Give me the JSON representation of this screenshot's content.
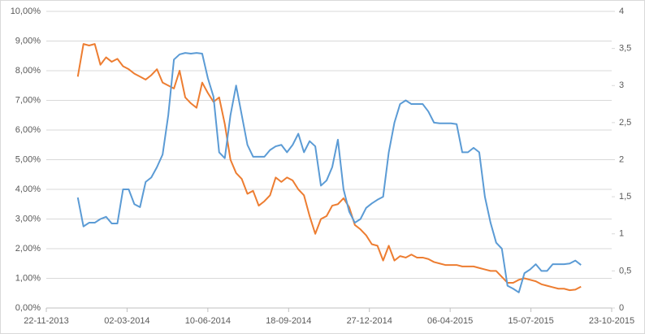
{
  "chart_data": {
    "type": "line",
    "x": [
      "31-12-2013",
      "07-01-2014",
      "14-01-2014",
      "21-01-2014",
      "28-01-2014",
      "04-02-2014",
      "11-02-2014",
      "18-02-2014",
      "25-02-2014",
      "04-03-2014",
      "11-03-2014",
      "18-03-2014",
      "25-03-2014",
      "01-04-2014",
      "08-04-2014",
      "15-04-2014",
      "22-04-2014",
      "29-04-2014",
      "06-05-2014",
      "13-05-2014",
      "20-05-2014",
      "27-05-2014",
      "03-06-2014",
      "10-06-2014",
      "17-06-2014",
      "24-06-2014",
      "01-07-2014",
      "08-07-2014",
      "15-07-2014",
      "22-07-2014",
      "29-07-2014",
      "05-08-2014",
      "12-08-2014",
      "19-08-2014",
      "26-08-2014",
      "02-09-2014",
      "09-09-2014",
      "16-09-2014",
      "23-09-2014",
      "30-09-2014",
      "07-10-2014",
      "14-10-2014",
      "21-10-2014",
      "28-10-2014",
      "04-11-2014",
      "11-11-2014",
      "18-11-2014",
      "25-11-2014",
      "02-12-2014",
      "09-12-2014",
      "16-12-2014",
      "23-12-2014",
      "30-12-2014",
      "06-01-2015",
      "13-01-2015",
      "20-01-2015",
      "27-01-2015",
      "03-02-2015",
      "10-02-2015",
      "17-02-2015",
      "24-02-2015",
      "03-03-2015",
      "10-03-2015",
      "17-03-2015",
      "24-03-2015",
      "31-03-2015",
      "07-04-2015",
      "14-04-2015",
      "21-04-2015",
      "28-04-2015",
      "05-05-2015",
      "12-05-2015",
      "19-05-2015",
      "26-05-2015",
      "02-06-2015",
      "09-06-2015",
      "16-06-2015",
      "23-06-2015",
      "30-06-2015",
      "07-07-2015",
      "14-07-2015",
      "21-07-2015",
      "28-07-2015",
      "04-08-2015",
      "11-08-2015",
      "18-08-2015",
      "25-08-2015",
      "01-09-2015",
      "08-09-2015",
      "15-09-2015"
    ],
    "series": [
      {
        "color": "#ed7d31",
        "values": [
          7.8,
          8.9,
          8.85,
          8.9,
          8.2,
          8.45,
          8.3,
          8.4,
          8.15,
          8.05,
          7.9,
          7.8,
          7.7,
          7.85,
          8.05,
          7.6,
          7.5,
          7.4,
          8.0,
          7.1,
          6.9,
          6.75,
          7.6,
          7.25,
          6.95,
          7.1,
          6.2,
          5.0,
          4.55,
          4.35,
          3.85,
          3.95,
          3.45,
          3.6,
          3.8,
          4.4,
          4.25,
          4.4,
          4.3,
          4.0,
          3.8,
          3.1,
          2.5,
          3.0,
          3.1,
          3.45,
          3.5,
          3.7,
          3.4,
          2.8,
          2.65,
          2.45,
          2.15,
          2.1,
          1.6,
          2.1,
          1.6,
          1.75,
          1.7,
          1.8,
          1.7,
          1.7,
          1.65,
          1.55,
          1.5,
          1.45,
          1.45,
          1.45,
          1.4,
          1.4,
          1.4,
          1.35,
          1.3,
          1.25,
          1.25,
          1.05,
          0.85,
          0.85,
          0.95,
          1.0,
          0.95,
          0.9,
          0.8,
          0.75,
          0.7,
          0.65,
          0.65,
          0.6,
          0.62,
          0.72
        ]
      },
      {
        "color": "#5b9bd5",
        "axis": "y2",
        "values": [
          1.49,
          1.1,
          1.15,
          1.15,
          1.2,
          1.23,
          1.14,
          1.14,
          1.6,
          1.6,
          1.4,
          1.36,
          1.7,
          1.76,
          1.9,
          2.07,
          2.6,
          3.35,
          3.42,
          3.44,
          3.43,
          3.44,
          3.43,
          3.1,
          2.85,
          2.1,
          2.02,
          2.6,
          3.0,
          2.6,
          2.2,
          2.04,
          2.04,
          2.04,
          2.13,
          2.18,
          2.2,
          2.1,
          2.2,
          2.35,
          2.1,
          2.25,
          2.18,
          1.65,
          1.72,
          1.9,
          2.27,
          1.6,
          1.3,
          1.15,
          1.2,
          1.35,
          1.41,
          1.46,
          1.5,
          2.1,
          2.5,
          2.75,
          2.8,
          2.75,
          2.75,
          2.75,
          2.65,
          2.5,
          2.49,
          2.49,
          2.49,
          2.48,
          2.1,
          2.1,
          2.16,
          2.1,
          1.5,
          1.15,
          0.88,
          0.8,
          0.3,
          0.26,
          0.21,
          0.47,
          0.52,
          0.59,
          0.5,
          0.5,
          0.59,
          0.59,
          0.59,
          0.6,
          0.64,
          0.58
        ]
      }
    ],
    "xlim": [
      "22-11-2013",
      "23-10-2015"
    ],
    "xticks": [
      "22-11-2013",
      "02-03-2014",
      "10-06-2014",
      "18-09-2014",
      "27-12-2014",
      "06-04-2015",
      "15-07-2015",
      "23-10-2015"
    ],
    "ylim": [
      0,
      10
    ],
    "yticks": [
      {
        "value": 0,
        "label": "0,00%"
      },
      {
        "value": 1,
        "label": "1,00%"
      },
      {
        "value": 2,
        "label": "2,00%"
      },
      {
        "value": 3,
        "label": "3,00%"
      },
      {
        "value": 4,
        "label": "4,00%"
      },
      {
        "value": 5,
        "label": "5,00%"
      },
      {
        "value": 6,
        "label": "6,00%"
      },
      {
        "value": 7,
        "label": "7,00%"
      },
      {
        "value": 8,
        "label": "8,00%"
      },
      {
        "value": 9,
        "label": "9,00%"
      },
      {
        "value": 10,
        "label": "10,00%"
      }
    ],
    "y2lim": [
      0,
      4
    ],
    "y2ticks": [
      0,
      {
        "value": 0.5,
        "label": "0,5"
      },
      1,
      {
        "value": 1.5,
        "label": "1,5"
      },
      2,
      {
        "value": 2.5,
        "label": "2,5"
      },
      3,
      {
        "value": 3.5,
        "label": "3,5"
      },
      4
    ],
    "grid": true
  }
}
